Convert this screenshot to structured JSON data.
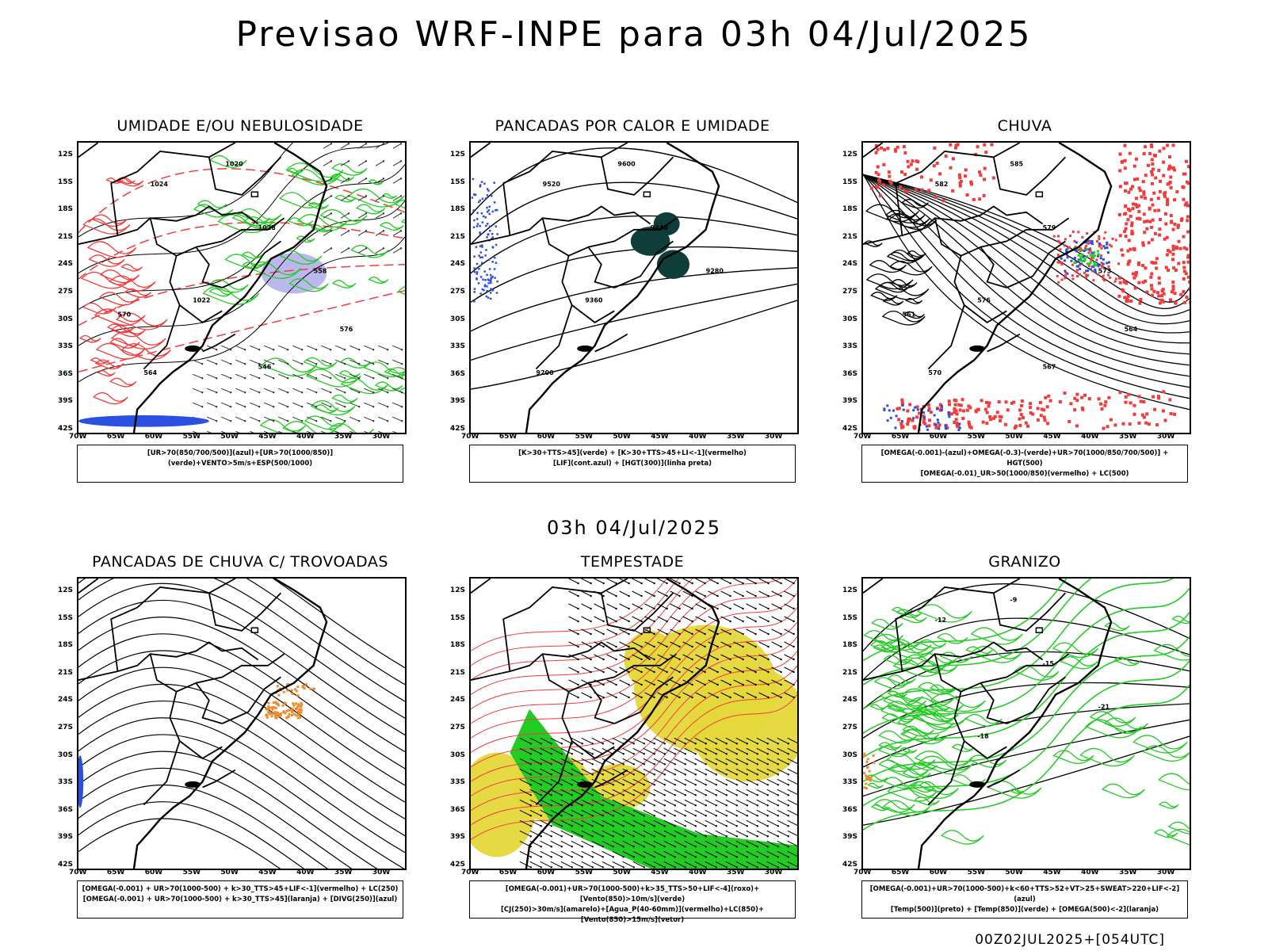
{
  "title": "Previsao WRF-INPE  para 03h 04/Jul/2025",
  "subtitle": "03h 04/Jul/2025",
  "footer": "00Z02JUL2025+[054UTC]",
  "lat_labels": [
    "12S",
    "15S",
    "18S",
    "21S",
    "24S",
    "27S",
    "30S",
    "33S",
    "36S",
    "39S",
    "42S"
  ],
  "lon_labels": [
    "70W",
    "65W",
    "60W",
    "55W",
    "50W",
    "45W",
    "40W",
    "35W",
    "30W"
  ],
  "colors": {
    "blue": "#2b4fe0",
    "green": "#22cc22",
    "red": "#f23c3c",
    "orange": "#f08a2a",
    "yellow": "#e4d83a",
    "dark_teal": "#0e3d3a",
    "lavender": "#b4b0ec"
  },
  "panels": [
    {
      "title": "UMIDADE E/OU NEBULOSIDADE",
      "legend": [
        "[UR>70(850/700/500)](azul)+[UR>70(1000/850)](verde)+VENTO>5m/s+ESP(500/1000)"
      ],
      "contour_labels": [
        "1020",
        "1024",
        "1028",
        "1022",
        "558",
        "564",
        "546",
        "576",
        "570"
      ]
    },
    {
      "title": "PANCADAS POR CALOR E UMIDADE",
      "legend": [
        "[K>30+TTS>45](verde) + [K>30+TTS>45+LI<-1](vermelho)",
        "[LIF](cont.azul) + [HGT(300)](linha preta)"
      ],
      "contour_labels": [
        "9600",
        "9520",
        "9440",
        "9360",
        "9280",
        "9200"
      ]
    },
    {
      "title": "CHUVA",
      "legend": [
        "[OMEGA(-0.001)-(azul)+OMEGA(-0.3)-(verde)+UR>70(1000/850/700/500)] + HGT(500)",
        "[OMEGA(-0.01)_UR>50(1000/850)(vermelho) + LC(500)"
      ],
      "contour_labels": [
        "585",
        "582",
        "579",
        "576",
        "573",
        "570",
        "567",
        "564",
        "561"
      ]
    },
    {
      "title": "PANCADAS DE CHUVA C/ TROVOADAS",
      "legend": [
        "[OMEGA(-0.001) + UR>70(1000-500) + k>30_TTS>45+LIF<-1](vermelho) + LC(250)",
        "[OMEGA(-0.001) + UR>70(1000-500) + k>30_TTS>45](laranja) + [DIVG(250)](azul)"
      ],
      "contour_labels": []
    },
    {
      "title": "TEMPESTADE",
      "legend": [
        "[OMEGA(-0.001)+UR>70(1000-500)+k>35_TTS>50+LIF<-4](roxo)+[Vento(850)>10m/s](verde)",
        "[CJ(250)>30m/s](amarelo)+[Agua_P(40-60mm)](vermelho)+LC(850)+[Vento(850)>15m/s](vetor)"
      ],
      "contour_labels": []
    },
    {
      "title": "GRANIZO",
      "legend": [
        "[OMEGA(-0.001)+UR>70(1000-500)+k<60+TTS>52+VT>25+SWEAT>220+LIF<-2](azul)",
        "[Temp(500)](preto) + [Temp(850)](verde) + [OMEGA(500)<-2](laranja)"
      ],
      "contour_labels": [
        "-9",
        "-12",
        "-15",
        "-18",
        "-21"
      ]
    }
  ]
}
